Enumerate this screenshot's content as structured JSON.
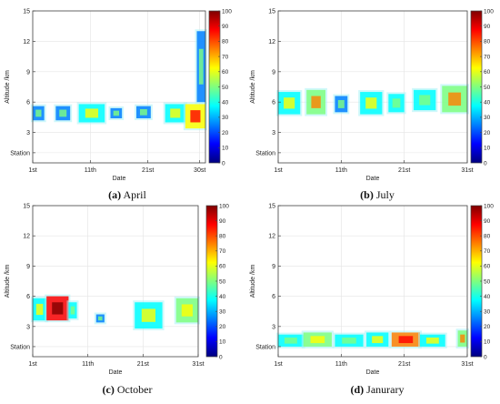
{
  "captions": [
    {
      "letter": "(a)",
      "month": "April"
    },
    {
      "letter": "(b)",
      "month": "July"
    },
    {
      "letter": "(c)",
      "month": "October"
    },
    {
      "letter": "(d)",
      "month": "Janurary"
    }
  ],
  "colormap": [
    "#00007f",
    "#0000ff",
    "#007fff",
    "#00ffff",
    "#7fff7f",
    "#ffff00",
    "#ff7f00",
    "#ff0000",
    "#7f0000"
  ],
  "chart_data": [
    {
      "type": "heatmap",
      "panel": "a",
      "xlabel": "Date",
      "ylabel": "Altitude /km",
      "x_ticks": [
        "1st",
        "11th",
        "21st",
        "30st"
      ],
      "x_tick_days": [
        1,
        11,
        21,
        30
      ],
      "xlim": [
        1,
        31
      ],
      "y_ticks": [
        "Station",
        "3",
        "6",
        "9",
        "12",
        "15"
      ],
      "y_tick_values": [
        1,
        3,
        6,
        9,
        12,
        15
      ],
      "ylim": [
        0,
        15
      ],
      "colorbar_ticks": [
        "0",
        "10",
        "20",
        "30",
        "40",
        "50",
        "60",
        "70",
        "80",
        "90",
        "100"
      ],
      "clim": [
        0,
        100
      ],
      "regions": [
        {
          "day_start": 1,
          "day_end": 3,
          "alt_low": 4.2,
          "alt_high": 5.6,
          "value": 30
        },
        {
          "day_start": 5,
          "day_end": 7.5,
          "alt_low": 4.2,
          "alt_high": 5.6,
          "value": 28
        },
        {
          "day_start": 9,
          "day_end": 13.5,
          "alt_low": 4.0,
          "alt_high": 5.8,
          "value": 40
        },
        {
          "day_start": 14.5,
          "day_end": 16.5,
          "alt_low": 4.4,
          "alt_high": 5.4,
          "value": 25
        },
        {
          "day_start": 19,
          "day_end": 21.5,
          "alt_low": 4.4,
          "alt_high": 5.6,
          "value": 30
        },
        {
          "day_start": 24,
          "day_end": 27.5,
          "alt_low": 4.0,
          "alt_high": 5.8,
          "value": 38
        },
        {
          "day_start": 27.5,
          "day_end": 31,
          "alt_low": 3.4,
          "alt_high": 5.8,
          "value": 62
        },
        {
          "day_start": 29.5,
          "day_end": 31,
          "alt_low": 6.0,
          "alt_high": 13.0,
          "value": 30
        }
      ]
    },
    {
      "type": "heatmap",
      "panel": "b",
      "xlabel": "Date",
      "ylabel": "Altitude /km",
      "x_ticks": [
        "1st",
        "11th",
        "21st",
        "31st"
      ],
      "x_tick_days": [
        1,
        11,
        21,
        31
      ],
      "xlim": [
        1,
        31
      ],
      "y_ticks": [
        "Station",
        "3",
        "6",
        "9",
        "12",
        "15"
      ],
      "y_tick_values": [
        1,
        3,
        6,
        9,
        12,
        15
      ],
      "ylim": [
        0,
        15
      ],
      "colorbar_ticks": [
        "0",
        "10",
        "20",
        "30",
        "40",
        "50",
        "60",
        "70",
        "80",
        "90",
        "100"
      ],
      "clim": [
        0,
        100
      ],
      "regions": [
        {
          "day_start": 1,
          "day_end": 4.5,
          "alt_low": 4.8,
          "alt_high": 7.0,
          "value": 42
        },
        {
          "day_start": 5.5,
          "day_end": 8.5,
          "alt_low": 4.8,
          "alt_high": 7.2,
          "value": 50
        },
        {
          "day_start": 10,
          "day_end": 12,
          "alt_low": 5.0,
          "alt_high": 6.6,
          "value": 30
        },
        {
          "day_start": 14,
          "day_end": 17.5,
          "alt_low": 4.8,
          "alt_high": 7.0,
          "value": 38
        },
        {
          "day_start": 18.5,
          "day_end": 21,
          "alt_low": 5.0,
          "alt_high": 6.8,
          "value": 35
        },
        {
          "day_start": 22.5,
          "day_end": 26,
          "alt_low": 5.2,
          "alt_high": 7.2,
          "value": 32
        },
        {
          "day_start": 27,
          "day_end": 31,
          "alt_low": 5.0,
          "alt_high": 7.6,
          "value": 55
        }
      ]
    },
    {
      "type": "heatmap",
      "panel": "c",
      "xlabel": "Date",
      "ylabel": "Altitude /km",
      "x_ticks": [
        "1st",
        "11th",
        "21st",
        "31st"
      ],
      "x_tick_days": [
        1,
        11,
        21,
        31
      ],
      "xlim": [
        1,
        31
      ],
      "y_ticks": [
        "Station",
        "3",
        "6",
        "9",
        "12",
        "15"
      ],
      "y_tick_values": [
        1,
        3,
        6,
        9,
        12,
        15
      ],
      "ylim": [
        0,
        15
      ],
      "colorbar_ticks": [
        "0",
        "10",
        "20",
        "30",
        "40",
        "50",
        "60",
        "70",
        "80",
        "90",
        "100"
      ],
      "clim": [
        0,
        100
      ],
      "regions": [
        {
          "day_start": 1,
          "day_end": 3.5,
          "alt_low": 3.6,
          "alt_high": 5.8,
          "value": 40
        },
        {
          "day_start": 3.5,
          "day_end": 7.5,
          "alt_low": 3.6,
          "alt_high": 6.0,
          "value": 82
        },
        {
          "day_start": 7.5,
          "day_end": 9,
          "alt_low": 3.8,
          "alt_high": 5.4,
          "value": 35
        },
        {
          "day_start": 12.5,
          "day_end": 14,
          "alt_low": 3.4,
          "alt_high": 4.2,
          "value": 30
        },
        {
          "day_start": 19.5,
          "day_end": 24.5,
          "alt_low": 2.8,
          "alt_high": 5.4,
          "value": 42
        },
        {
          "day_start": 27,
          "day_end": 31,
          "alt_low": 3.4,
          "alt_high": 5.8,
          "value": 48
        }
      ]
    },
    {
      "type": "heatmap",
      "panel": "d",
      "xlabel": "Date",
      "ylabel": "Altitude /km",
      "x_ticks": [
        "1st",
        "11th",
        "21st",
        "31st"
      ],
      "x_tick_days": [
        1,
        11,
        21,
        31
      ],
      "xlim": [
        1,
        31
      ],
      "y_ticks": [
        "Station",
        "3",
        "6",
        "9",
        "12",
        "15"
      ],
      "y_tick_values": [
        1,
        3,
        6,
        9,
        12,
        15
      ],
      "ylim": [
        0,
        15
      ],
      "colorbar_ticks": [
        "0",
        "10",
        "20",
        "30",
        "40",
        "50",
        "60",
        "70",
        "80",
        "90",
        "100"
      ],
      "clim": [
        0,
        100
      ],
      "regions": [
        {
          "day_start": 1,
          "day_end": 5,
          "alt_low": 1.0,
          "alt_high": 2.2,
          "value": 35
        },
        {
          "day_start": 5,
          "day_end": 9.5,
          "alt_low": 1.0,
          "alt_high": 2.4,
          "value": 45
        },
        {
          "day_start": 10,
          "day_end": 14.5,
          "alt_low": 1.0,
          "alt_high": 2.2,
          "value": 35
        },
        {
          "day_start": 15,
          "day_end": 18.5,
          "alt_low": 1.0,
          "alt_high": 2.4,
          "value": 40
        },
        {
          "day_start": 19,
          "day_end": 23.5,
          "alt_low": 1.0,
          "alt_high": 2.4,
          "value": 72
        },
        {
          "day_start": 23.5,
          "day_end": 27.5,
          "alt_low": 1.0,
          "alt_high": 2.2,
          "value": 38
        },
        {
          "day_start": 29.5,
          "day_end": 31,
          "alt_low": 1.0,
          "alt_high": 2.6,
          "value": 50
        }
      ]
    }
  ]
}
